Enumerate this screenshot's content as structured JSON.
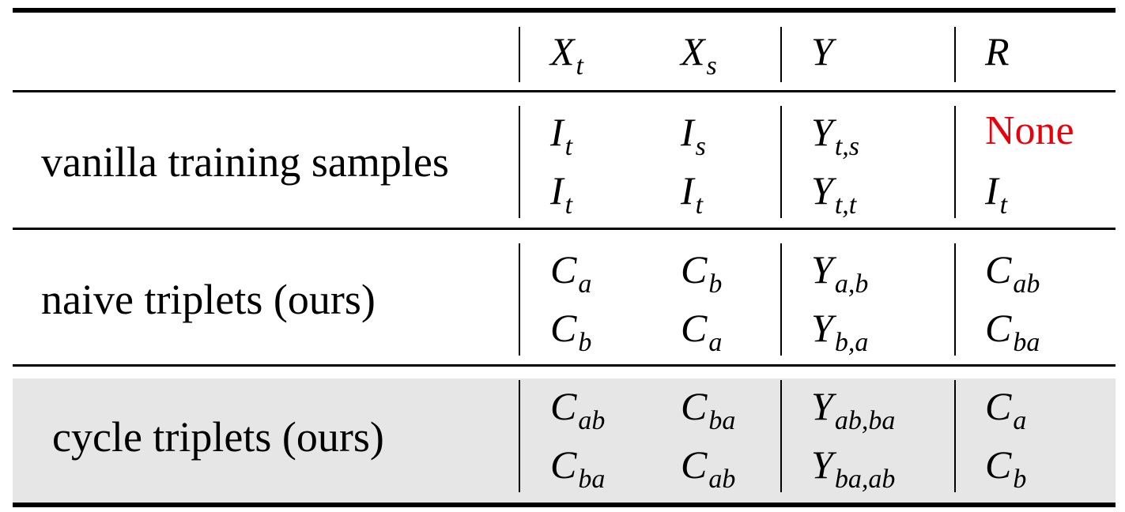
{
  "header": {
    "row_label": "",
    "cols": [
      {
        "base": "X",
        "sub": "t"
      },
      {
        "base": "X",
        "sub": "s"
      },
      {
        "base": "Y",
        "sub": ""
      },
      {
        "base": "R",
        "sub": ""
      }
    ]
  },
  "groups": [
    {
      "label": "vanilla training samples",
      "rows": [
        [
          {
            "base": "I",
            "sub": "t"
          },
          {
            "base": "I",
            "sub": "s"
          },
          {
            "base": "Y",
            "sub": "t,s"
          },
          {
            "base": "None",
            "sub": "",
            "color": "#e8000b"
          }
        ],
        [
          {
            "base": "I",
            "sub": "t"
          },
          {
            "base": "I",
            "sub": "t"
          },
          {
            "base": "Y",
            "sub": "t,t"
          },
          {
            "base": "I",
            "sub": "t"
          }
        ]
      ]
    },
    {
      "label": "naive triplets (ours)",
      "rows": [
        [
          {
            "base": "C",
            "sub": "a"
          },
          {
            "base": "C",
            "sub": "b"
          },
          {
            "base": "Y",
            "sub": "a,b"
          },
          {
            "base": "C",
            "sub": "ab"
          }
        ],
        [
          {
            "base": "C",
            "sub": "b"
          },
          {
            "base": "C",
            "sub": "a"
          },
          {
            "base": "Y",
            "sub": "b,a"
          },
          {
            "base": "C",
            "sub": "ba"
          }
        ]
      ]
    },
    {
      "label": "cycle triplets (ours)",
      "highlight": "#e6e6e6",
      "rows": [
        [
          {
            "base": "C",
            "sub": "ab"
          },
          {
            "base": "C",
            "sub": "ba"
          },
          {
            "base": "Y",
            "sub": "ab,ba"
          },
          {
            "base": "C",
            "sub": "a"
          }
        ],
        [
          {
            "base": "C",
            "sub": "ba"
          },
          {
            "base": "C",
            "sub": "ab"
          },
          {
            "base": "Y",
            "sub": "ba,ab"
          },
          {
            "base": "C",
            "sub": "b"
          }
        ]
      ]
    }
  ]
}
